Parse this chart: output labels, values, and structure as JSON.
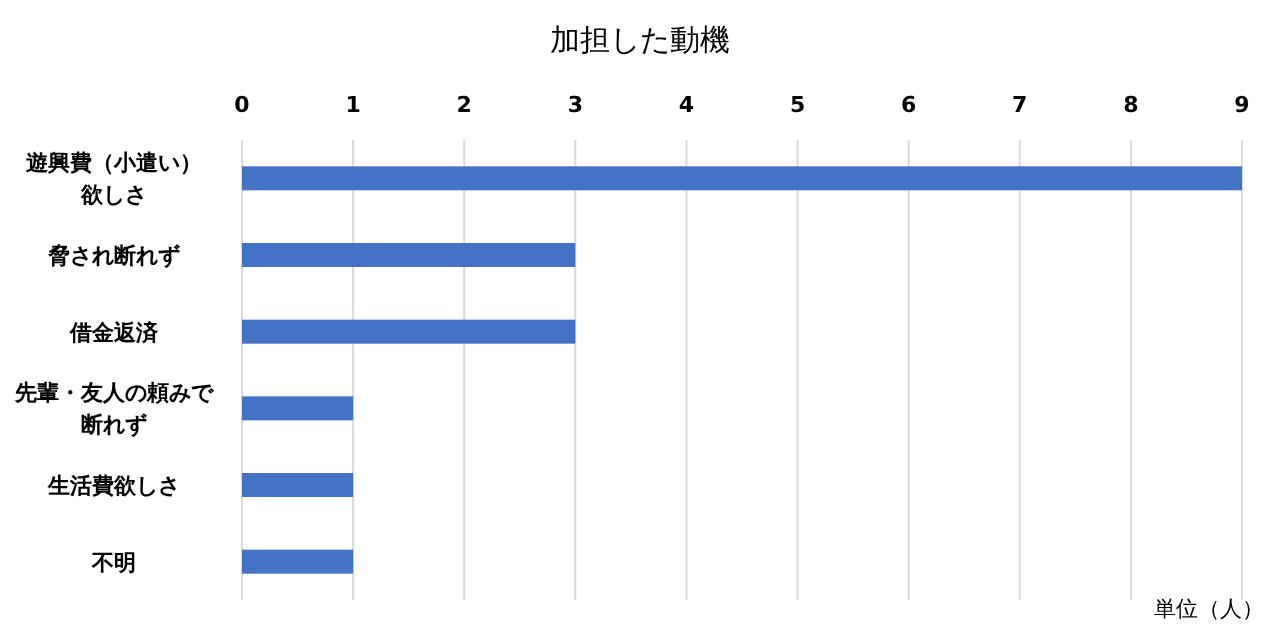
{
  "chart_data": {
    "type": "bar",
    "orientation": "horizontal",
    "title": "加担した動機",
    "categories": [
      "遊興費（小遣い）欲しさ",
      "脅され断れず",
      "借金返済",
      "先輩・友人の頼みで断れず",
      "生活費欲しさ",
      "不明"
    ],
    "values": [
      9,
      3,
      3,
      1,
      1,
      1
    ],
    "color": "#4472c4",
    "xlim": [
      0,
      9
    ],
    "xticks": [
      0,
      1,
      2,
      3,
      4,
      5,
      6,
      7,
      8,
      9
    ],
    "grid": "x",
    "annotations": [
      "単位（人）"
    ]
  }
}
